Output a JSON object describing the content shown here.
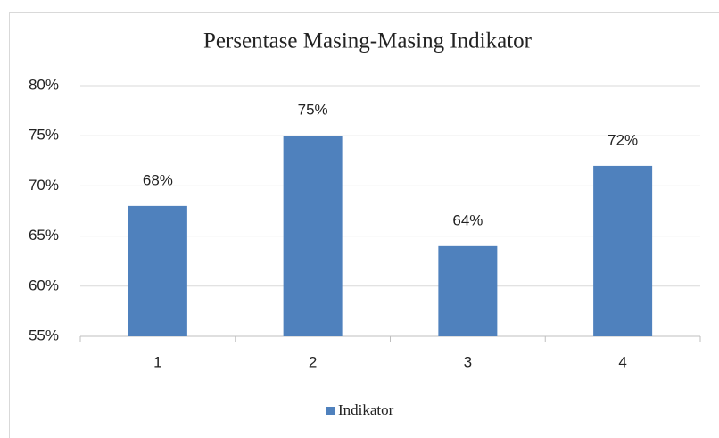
{
  "chart_data": {
    "type": "bar",
    "title": "Persentase Masing-Masing Indikator",
    "categories": [
      "1",
      "2",
      "3",
      "4"
    ],
    "series": [
      {
        "name": "Indikator",
        "color": "#4f81bd",
        "values": [
          68,
          75,
          64,
          72
        ],
        "value_labels": [
          "68%",
          "75%",
          "64%",
          "72%"
        ]
      }
    ],
    "ylim": [
      55,
      80
    ],
    "yticks": [
      {
        "value": 55,
        "label": "55%"
      },
      {
        "value": 60,
        "label": "60%"
      },
      {
        "value": 65,
        "label": "65%"
      },
      {
        "value": 70,
        "label": "70%"
      },
      {
        "value": 75,
        "label": "75%"
      },
      {
        "value": 80,
        "label": "80%"
      }
    ],
    "grid": true,
    "legend": "bottom"
  }
}
